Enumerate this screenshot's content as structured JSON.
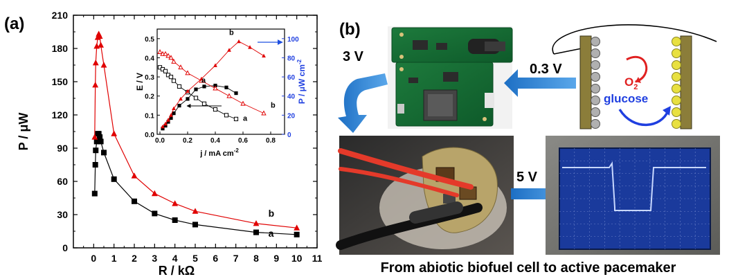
{
  "panel_a": {
    "label": "(a)",
    "chart_data": [
      {
        "type": "scatter",
        "xlabel": "R / kΩ",
        "ylabel": "P / μW",
        "xlim": [
          -1,
          11
        ],
        "ylim": [
          0,
          210
        ],
        "x_ticks": [
          0,
          1,
          2,
          3,
          4,
          5,
          6,
          7,
          8,
          9,
          10,
          11
        ],
        "y_ticks": [
          0,
          30,
          60,
          90,
          120,
          150,
          180,
          210
        ],
        "series": [
          {
            "name": "a",
            "color": "#000000",
            "marker": "square",
            "x": [
              0.05,
              0.08,
              0.1,
              0.15,
              0.2,
              0.25,
              0.3,
              0.35,
              0.5,
              1,
              2,
              3,
              4,
              5,
              8,
              10
            ],
            "y": [
              49,
              75,
              88,
              96,
              103,
              103,
              100,
              96,
              86,
              62,
              42,
              31,
              25,
              21,
              14,
              12
            ]
          },
          {
            "name": "b",
            "color": "#e00000",
            "marker": "triangle",
            "x": [
              0.05,
              0.08,
              0.1,
              0.15,
              0.2,
              0.25,
              0.3,
              0.35,
              0.5,
              1,
              2,
              3,
              4,
              5,
              8,
              10
            ],
            "y": [
              100,
              147,
              167,
              182,
              190,
              193,
              191,
              183,
              165,
              103,
              65,
              49,
              40,
              33,
              22,
              18
            ]
          }
        ],
        "annotations": [
          "a",
          "b"
        ]
      },
      {
        "type": "scatter",
        "xlabel": "j / mA cm",
        "xlabel_sup": "-2",
        "ylabel": "E / V",
        "y2label": "P / μW cm",
        "y2label_sup": "-2",
        "xlim": [
          -0.02,
          0.9
        ],
        "ylim": [
          0,
          0.55
        ],
        "y2lim": [
          0,
          110
        ],
        "x_ticks": [
          0.0,
          0.2,
          0.4,
          0.6,
          0.8
        ],
        "y_ticks": [
          0.0,
          0.1,
          0.2,
          0.3,
          0.4,
          0.5
        ],
        "y2_ticks": [
          0,
          20,
          40,
          60,
          80,
          100
        ],
        "series": [
          {
            "name": "a",
            "color": "#000000",
            "axis": "left",
            "marker": "open-square",
            "x": [
              0,
              0.02,
              0.04,
              0.06,
              0.08,
              0.1,
              0.14,
              0.2,
              0.26,
              0.32,
              0.4,
              0.48,
              0.55
            ],
            "y": [
              0.35,
              0.34,
              0.33,
              0.31,
              0.3,
              0.28,
              0.25,
              0.22,
              0.19,
              0.16,
              0.13,
              0.1,
              0.08
            ]
          },
          {
            "name": "a",
            "color": "#000000",
            "axis": "right",
            "marker": "square",
            "x": [
              0.02,
              0.04,
              0.06,
              0.08,
              0.1,
              0.14,
              0.2,
              0.26,
              0.32,
              0.4,
              0.48,
              0.55
            ],
            "y": [
              6,
              9,
              13,
              17,
              22,
              30,
              37,
              47,
              50,
              51,
              49,
              43
            ]
          },
          {
            "name": "b",
            "color": "#e00000",
            "axis": "left",
            "marker": "open-triangle",
            "x": [
              0,
              0.02,
              0.04,
              0.06,
              0.08,
              0.1,
              0.15,
              0.2,
              0.3,
              0.4,
              0.5,
              0.6,
              0.75
            ],
            "y": [
              0.43,
              0.42,
              0.42,
              0.41,
              0.4,
              0.38,
              0.35,
              0.32,
              0.28,
              0.24,
              0.2,
              0.16,
              0.11
            ]
          },
          {
            "name": "b",
            "color": "#e00000",
            "axis": "right",
            "marker": "triangle",
            "x": [
              0.02,
              0.04,
              0.06,
              0.08,
              0.1,
              0.15,
              0.2,
              0.3,
              0.4,
              0.5,
              0.57,
              0.65,
              0.75
            ],
            "y": [
              8,
              11,
              15,
              20,
              27,
              37,
              45,
              58,
              72,
              88,
              97,
              91,
              82
            ]
          }
        ],
        "annotations": [
          "a",
          "b",
          "a",
          "b"
        ]
      }
    ]
  },
  "panel_b": {
    "label": "(b)",
    "voltage_board": "3 V",
    "voltage_cell": "0.3 V",
    "voltage_pacemaker": "5 V",
    "oxygen_label": "O",
    "oxygen_sub": "2",
    "glucose_label": "glucose",
    "caption": "From abiotic biofuel cell to active pacemaker",
    "accent_blue": "#2a7fd0",
    "scope_colors": {
      "screen": "#1a3a9c",
      "trace": "#c8d8ff"
    }
  }
}
